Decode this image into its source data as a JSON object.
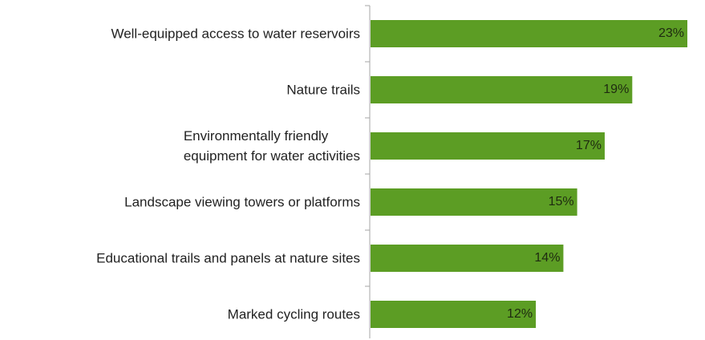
{
  "chart_data": {
    "type": "bar",
    "orientation": "horizontal",
    "categories": [
      "Well-equipped access to water reservoirs",
      "Nature trails",
      "Environmentally friendly\nequipment for water activities",
      "Landscape viewing towers or platforms",
      "Educational trails and panels at nature sites",
      "Marked cycling routes"
    ],
    "values": [
      23,
      19,
      17,
      15,
      14,
      12
    ],
    "value_labels": [
      "23%",
      "19%",
      "17%",
      "15%",
      "14%",
      "12%"
    ],
    "color": "#5c9d24"
  }
}
